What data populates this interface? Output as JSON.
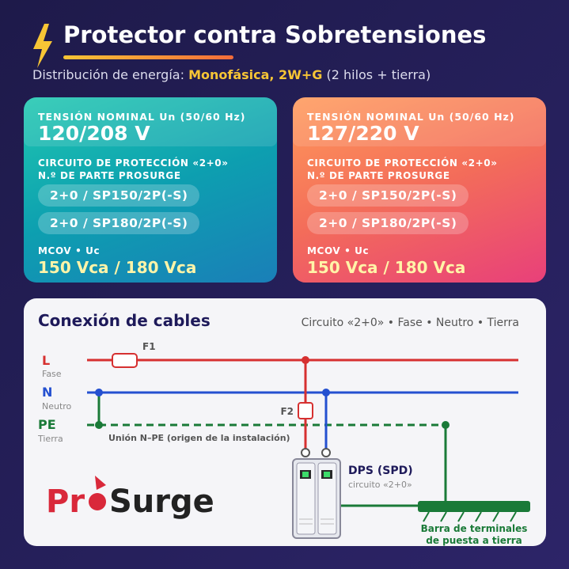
{
  "header": {
    "title": "Protector contra Sobretensiones",
    "subtitle_lead": "Distribución de energía:",
    "subtitle_highlight": "Monofásica, 2W+G",
    "subtitle_tail": "(2 hilos + tierra)"
  },
  "cards": [
    {
      "voltage_label": "TENSIÓN NOMINAL Un (50/60 Hz)",
      "voltage": "120/208 V",
      "circuit_label": "CIRCUITO DE PROTECCIÓN «2+0»",
      "part_label": "N.º DE PARTE PROSURGE",
      "parts": [
        "2+0 / SP150/2P(-S)",
        "2+0 / SP180/2P(-S)"
      ],
      "mcov_label": "MCOV • Uc",
      "mcov": "150 Vca / 180 Vca"
    },
    {
      "voltage_label": "TENSIÓN NOMINAL Un (50/60 Hz)",
      "voltage": "127/220 V",
      "circuit_label": "CIRCUITO DE PROTECCIÓN «2+0»",
      "part_label": "N.º DE PARTE PROSURGE",
      "parts": [
        "2+0 / SP150/2P(-S)",
        "2+0 / SP180/2P(-S)"
      ],
      "mcov_label": "MCOV • Uc",
      "mcov": "150 Vca / 180 Vca"
    }
  ],
  "diagram": {
    "title": "Conexión de cables",
    "legend": "Circuito «2+0» • Fase • Neutro • Tierra",
    "conductors": [
      {
        "code": "L",
        "label": "Fase"
      },
      {
        "code": "N",
        "label": "Neutro"
      },
      {
        "code": "PE",
        "label": "Tierra"
      }
    ],
    "fuse_1": "F1",
    "fuse_2": "F2",
    "bond_label": "Unión N–PE (origen de la instalación)",
    "device": "DPS (SPD)",
    "device_sub": "circuito «2+0»",
    "ground_bar": [
      "Barra de terminales",
      "de puesta a tierra"
    ],
    "logo": {
      "first": "Pr",
      "second": "Surge"
    }
  }
}
